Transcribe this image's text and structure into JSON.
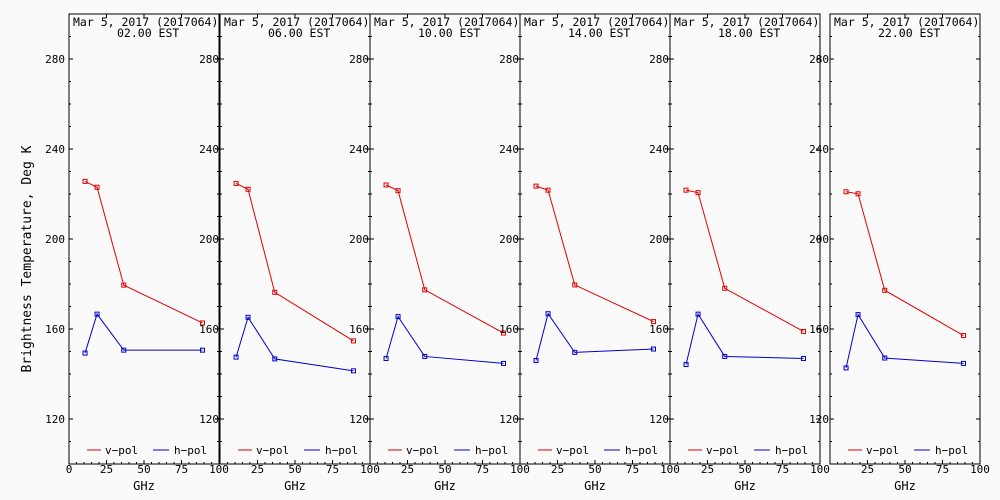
{
  "figure": {
    "ylabel": "Brightness Temperature, Deg K",
    "xlabel": "GHz",
    "x_ticks": [
      0,
      25,
      50,
      75,
      100
    ],
    "y_ticks": [
      120,
      160,
      200,
      240,
      280
    ]
  },
  "legend": {
    "v_label": "v−pol",
    "h_label": "h−pol"
  },
  "colors": {
    "v_pol": "#e00000",
    "h_pol": "#0000cc",
    "axes": "#000000",
    "background": "#fafafa"
  },
  "chart_data": [
    {
      "type": "line",
      "title": "Mar  5, 2017 (2017064)",
      "subtitle": "02.00 EST",
      "xlabel": "GHz",
      "ylabel": "Brightness Temperature, Deg K",
      "xlim": [
        0,
        100
      ],
      "ylim": [
        100,
        295
      ],
      "series": [
        {
          "name": "v-pol",
          "x": [
            10.7,
            18.7,
            36.5,
            89.0
          ],
          "values": [
            225.6,
            223.0,
            179.5,
            162.7
          ]
        },
        {
          "name": "h-pol",
          "x": [
            10.7,
            18.7,
            36.5,
            89.0
          ],
          "values": [
            149.3,
            166.6,
            150.6,
            150.6
          ]
        }
      ]
    },
    {
      "type": "line",
      "title": "Mar  5, 2017 (2017064)",
      "subtitle": "06.00 EST",
      "xlabel": "GHz",
      "ylabel": "Brightness Temperature, Deg K",
      "xlim": [
        0,
        100
      ],
      "ylim": [
        100,
        295
      ],
      "series": [
        {
          "name": "v-pol",
          "x": [
            10.7,
            18.7,
            36.5,
            89.0
          ],
          "values": [
            224.7,
            222.1,
            176.3,
            154.7
          ]
        },
        {
          "name": "h-pol",
          "x": [
            10.7,
            18.7,
            36.5,
            89.0
          ],
          "values": [
            147.5,
            165.2,
            146.7,
            141.4
          ]
        }
      ]
    },
    {
      "type": "line",
      "title": "Mar  5, 2017 (2017064)",
      "subtitle": "10.00 EST",
      "xlabel": "GHz",
      "ylabel": "Brightness Temperature, Deg K",
      "xlim": [
        0,
        100
      ],
      "ylim": [
        100,
        295
      ],
      "series": [
        {
          "name": "v-pol",
          "x": [
            10.7,
            18.7,
            36.5,
            89.0
          ],
          "values": [
            224.0,
            221.5,
            177.4,
            158.2
          ]
        },
        {
          "name": "h-pol",
          "x": [
            10.7,
            18.7,
            36.5,
            89.0
          ],
          "values": [
            146.9,
            165.5,
            147.8,
            144.7
          ]
        }
      ]
    },
    {
      "type": "line",
      "title": "Mar  5, 2017 (2017064)",
      "subtitle": "14.00 EST",
      "xlabel": "GHz",
      "ylabel": "Brightness Temperature, Deg K",
      "xlim": [
        0,
        100
      ],
      "ylim": [
        100,
        295
      ],
      "series": [
        {
          "name": "v-pol",
          "x": [
            10.7,
            18.7,
            36.5,
            89.0
          ],
          "values": [
            223.5,
            221.7,
            179.6,
            163.3
          ]
        },
        {
          "name": "h-pol",
          "x": [
            10.7,
            18.7,
            36.5,
            89.0
          ],
          "values": [
            146.0,
            166.8,
            149.6,
            151.1
          ]
        }
      ]
    },
    {
      "type": "line",
      "title": "Mar  5, 2017 (2017064)",
      "subtitle": "18.00 EST",
      "xlabel": "GHz",
      "ylabel": "Brightness Temperature, Deg K",
      "xlim": [
        0,
        100
      ],
      "ylim": [
        100,
        295
      ],
      "series": [
        {
          "name": "v-pol",
          "x": [
            10.7,
            18.7,
            36.5,
            89.0
          ],
          "values": [
            221.7,
            220.6,
            178.1,
            158.9
          ]
        },
        {
          "name": "h-pol",
          "x": [
            10.7,
            18.7,
            36.5,
            89.0
          ],
          "values": [
            144.2,
            166.6,
            147.8,
            146.9
          ]
        }
      ]
    },
    {
      "type": "line",
      "title": "Mar  5, 2017 (2017064)",
      "subtitle": "22.00 EST",
      "xlabel": "GHz",
      "ylabel": "Brightness Temperature, Deg K",
      "xlim": [
        0,
        100
      ],
      "ylim": [
        100,
        295
      ],
      "series": [
        {
          "name": "v-pol",
          "x": [
            10.7,
            18.7,
            36.5,
            89.0
          ],
          "values": [
            221.0,
            220.1,
            177.2,
            157.1
          ]
        },
        {
          "name": "h-pol",
          "x": [
            10.7,
            18.7,
            36.5,
            89.0
          ],
          "values": [
            142.7,
            166.4,
            147.1,
            144.7
          ]
        }
      ]
    }
  ]
}
